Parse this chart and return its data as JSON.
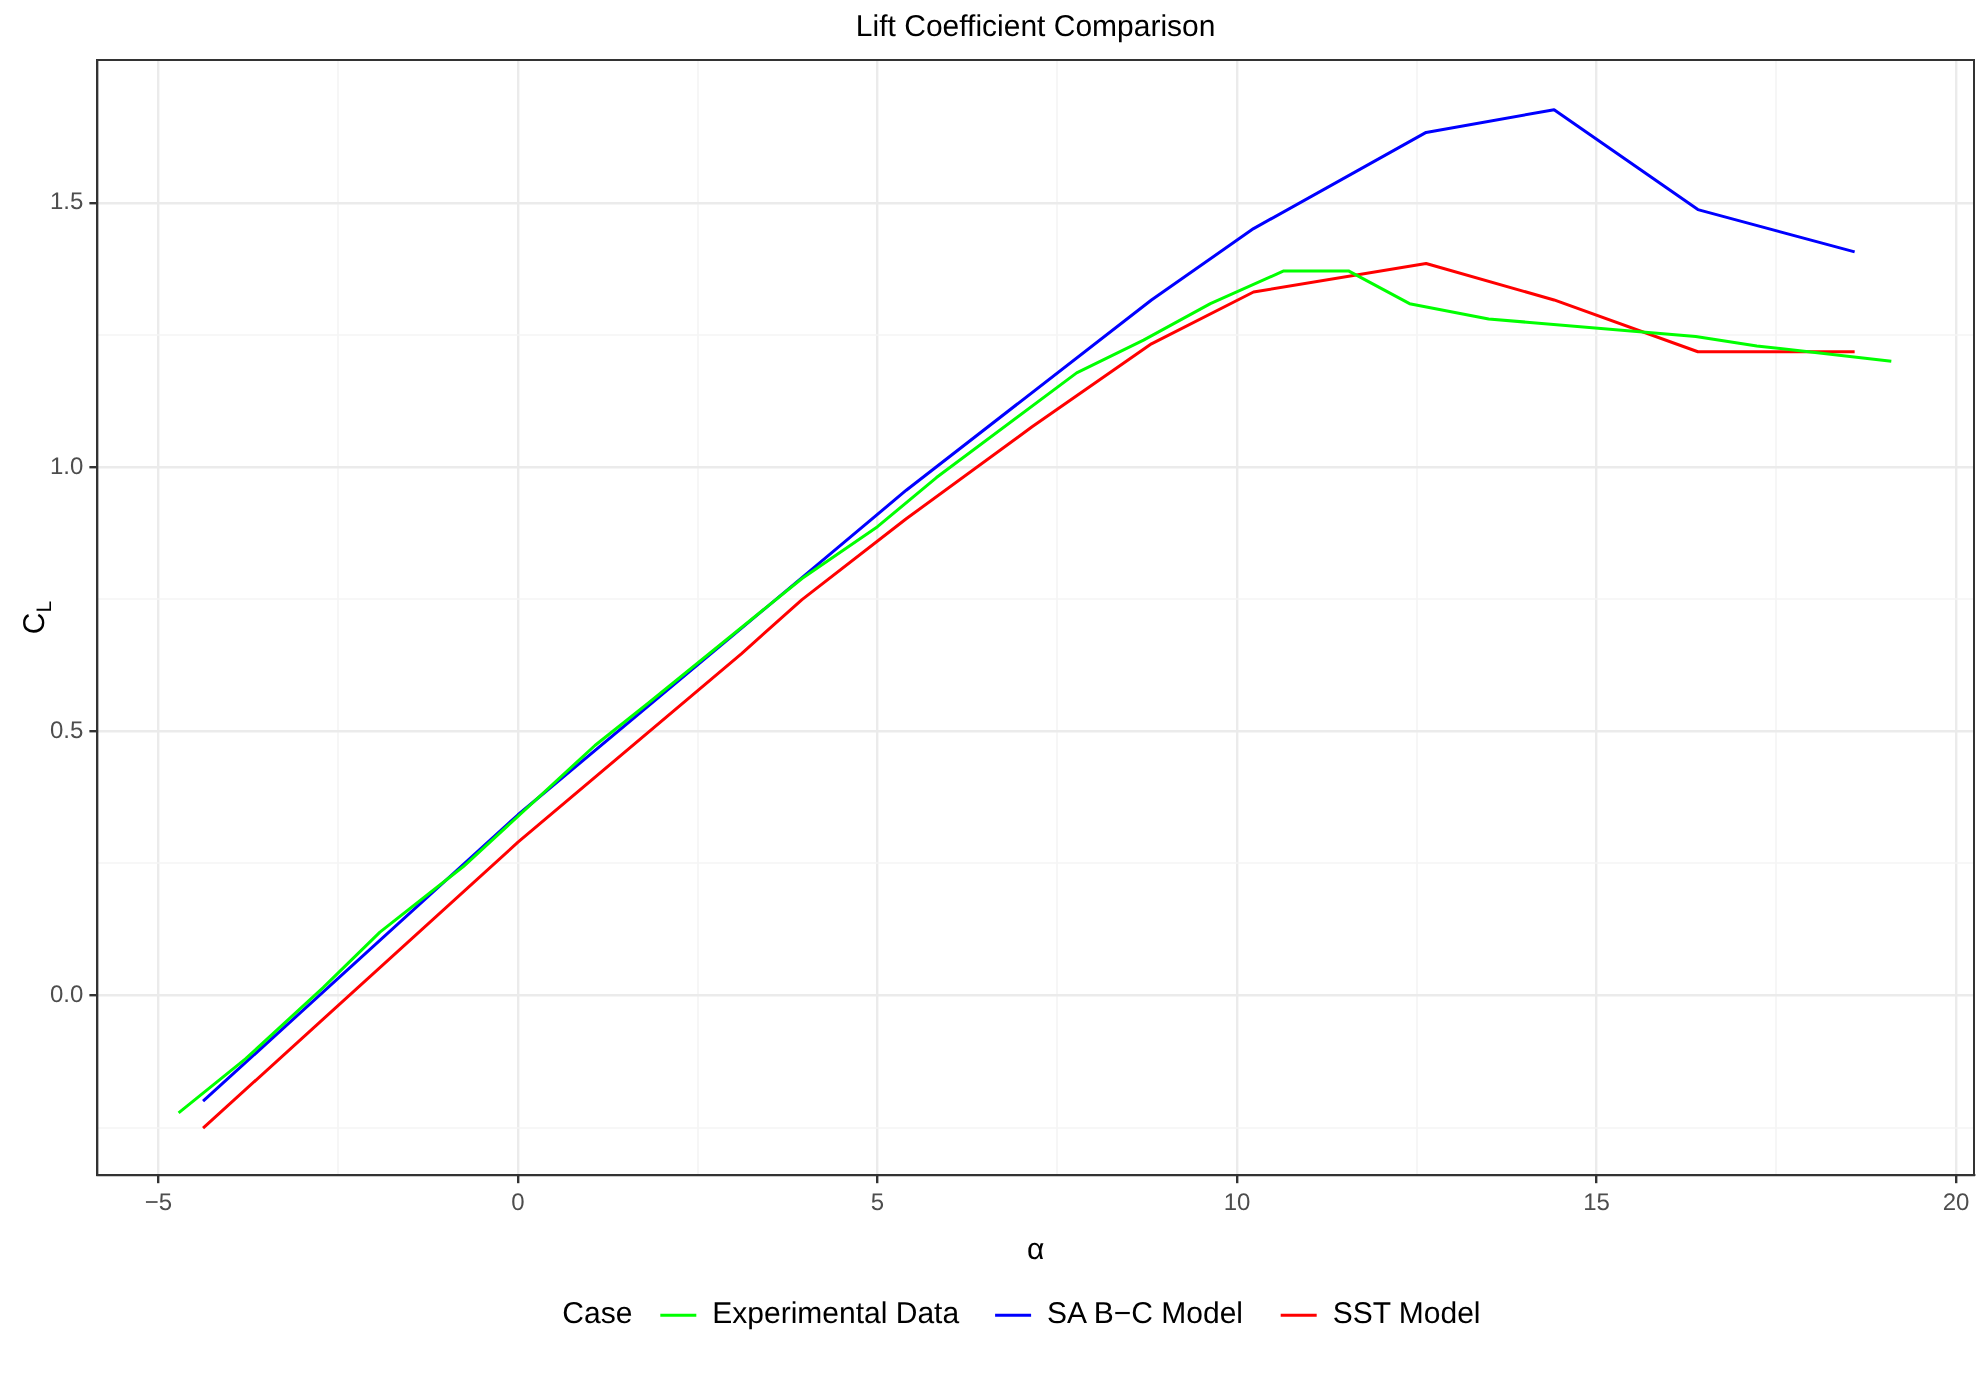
{
  "chart_data": {
    "type": "line",
    "title": "Lift Coefficient Comparison",
    "xlabel": "α",
    "ylabel": "C$_{L}$",
    "legend_title": "Case",
    "legend": "bottom",
    "grid": true,
    "marker": "none",
    "line_style": "solid",
    "xlim": [
      -5.85,
      20.25
    ],
    "ylim": [
      -0.34,
      1.77
    ],
    "xticks": [
      {
        "value": -5,
        "label": "−5"
      },
      {
        "value": -2.5,
        "label": null
      },
      0,
      {
        "value": 2.5,
        "label": null
      },
      5,
      {
        "value": 7.5,
        "label": null
      },
      10,
      {
        "value": 12.5,
        "label": null
      },
      15,
      {
        "value": 17.5,
        "label": null
      },
      20
    ],
    "yticks": [
      {
        "value": -0.25,
        "label": null
      },
      {
        "value": 0,
        "label": "0.0"
      },
      {
        "value": 0.25,
        "label": null
      },
      0.5,
      {
        "value": 0.75,
        "label": null
      },
      {
        "value": 1,
        "label": "1.0"
      },
      {
        "value": 1.25,
        "label": null
      },
      1.5
    ],
    "series": [
      {
        "name": "Experimental Data",
        "color": "#00ff00",
        "x": [
          -4.72,
          -3.79,
          -2.71,
          -1.92,
          -0.76,
          1.07,
          1.81,
          3.95,
          5.0,
          5.82,
          7.77,
          8.7,
          9.63,
          10.65,
          11.55,
          12.4,
          13.5,
          16.38,
          17.23,
          19.1
        ],
        "values": [
          -0.222,
          -0.12,
          0.015,
          0.12,
          0.244,
          0.473,
          0.553,
          0.789,
          0.887,
          0.98,
          1.178,
          1.24,
          1.309,
          1.371,
          1.371,
          1.309,
          1.28,
          1.247,
          1.229,
          1.2
        ]
      },
      {
        "name": "SA B−C Model",
        "color": "#0000ff",
        "x": [
          -4.38,
          0,
          3.11,
          5.4,
          8.81,
          10.23,
          12.63,
          14.41,
          16.41,
          18.59
        ],
        "values": [
          -0.2,
          0.342,
          0.695,
          0.956,
          1.316,
          1.451,
          1.633,
          1.676,
          1.487,
          1.407
        ]
      },
      {
        "name": "SST Model",
        "color": "#ff0000",
        "x": [
          -4.38,
          0,
          3.11,
          3.95,
          5.4,
          7.15,
          8.81,
          10.23,
          12.63,
          14.41,
          16.41,
          18.59
        ],
        "values": [
          -0.251,
          0.29,
          0.647,
          0.749,
          0.902,
          1.076,
          1.233,
          1.331,
          1.385,
          1.316,
          1.218,
          1.218
        ]
      }
    ]
  }
}
